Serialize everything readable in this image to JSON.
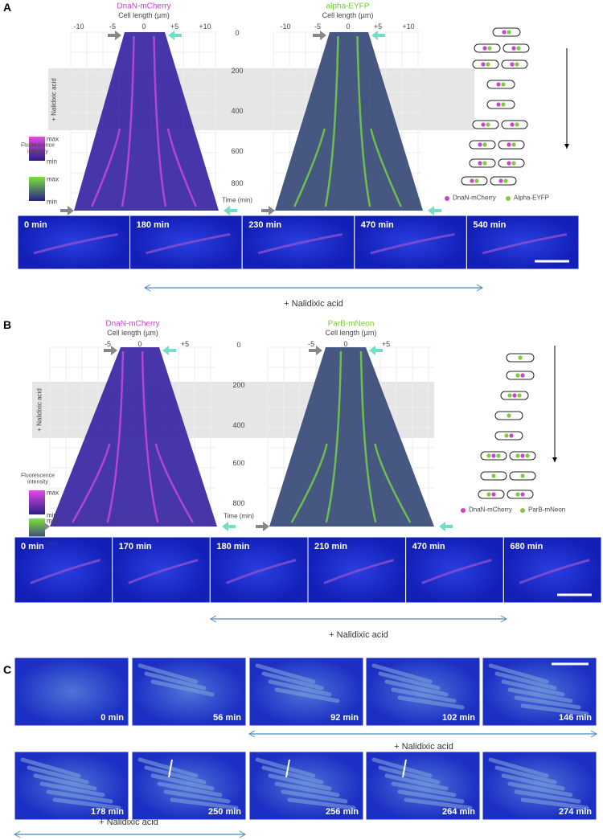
{
  "panels": [
    {
      "label": "A",
      "kymographs": [
        {
          "title": "DnaN-mCherry",
          "axis_label": "Cell length (µm)",
          "ticks": [
            "-10",
            "-5",
            "0",
            "+5",
            "+10"
          ]
        },
        {
          "title": "alpha-EYFP",
          "axis_label": "Cell length (µm)",
          "ticks": [
            "-10",
            "-5",
            "0",
            "+5",
            "+10"
          ]
        }
      ],
      "time_axis": {
        "ticks": [
          "0",
          "200",
          "400",
          "600",
          "800"
        ],
        "label": "Time (min)"
      },
      "treatment": "+ Nalidixic acid",
      "intensity": {
        "title": "Fluorescence intensity",
        "scales": [
          [
            "max",
            "min"
          ],
          [
            "max",
            "min"
          ]
        ]
      },
      "legend": [
        "DnaN-mCherry",
        "Alpha-EYFP"
      ],
      "frames": [
        "0 min",
        "180 min",
        "230 min",
        "470 min",
        "540 min"
      ],
      "frames_treatment": "+ Nalidixic acid"
    },
    {
      "label": "B",
      "kymographs": [
        {
          "title": "DnaN-mCherry",
          "axis_label": "Cell length (µm)",
          "ticks": [
            "-5",
            "0",
            "+5"
          ]
        },
        {
          "title": "ParB-mNeon",
          "axis_label": "Cell length (µm)",
          "ticks": [
            "-5",
            "0",
            "+5"
          ]
        }
      ],
      "time_axis": {
        "ticks": [
          "0",
          "200",
          "400",
          "600",
          "800"
        ],
        "label": "Time (min)"
      },
      "treatment": "+ Nalidixic acid",
      "intensity": {
        "title": "Fluorescence intensity",
        "scales": [
          [
            "max",
            "min"
          ],
          [
            "max",
            "min"
          ]
        ]
      },
      "legend": [
        "DnaN-mCherry",
        "ParB-mNeon"
      ],
      "frames": [
        "0 min",
        "170 min",
        "180 min",
        "210 min",
        "470 min",
        "680 min"
      ],
      "frames_treatment": "+ Nalidixic acid"
    },
    {
      "label": "C",
      "rows": [
        {
          "frames": [
            "0 min",
            "56 min",
            "92 min",
            "102 min",
            "146 min"
          ],
          "treatment": "+ Nalidixic acid"
        },
        {
          "frames": [
            "178 min",
            "250 min",
            "256 min",
            "264 min",
            "274 min"
          ],
          "treatment": "+ Nalidixic acid"
        }
      ]
    }
  ]
}
